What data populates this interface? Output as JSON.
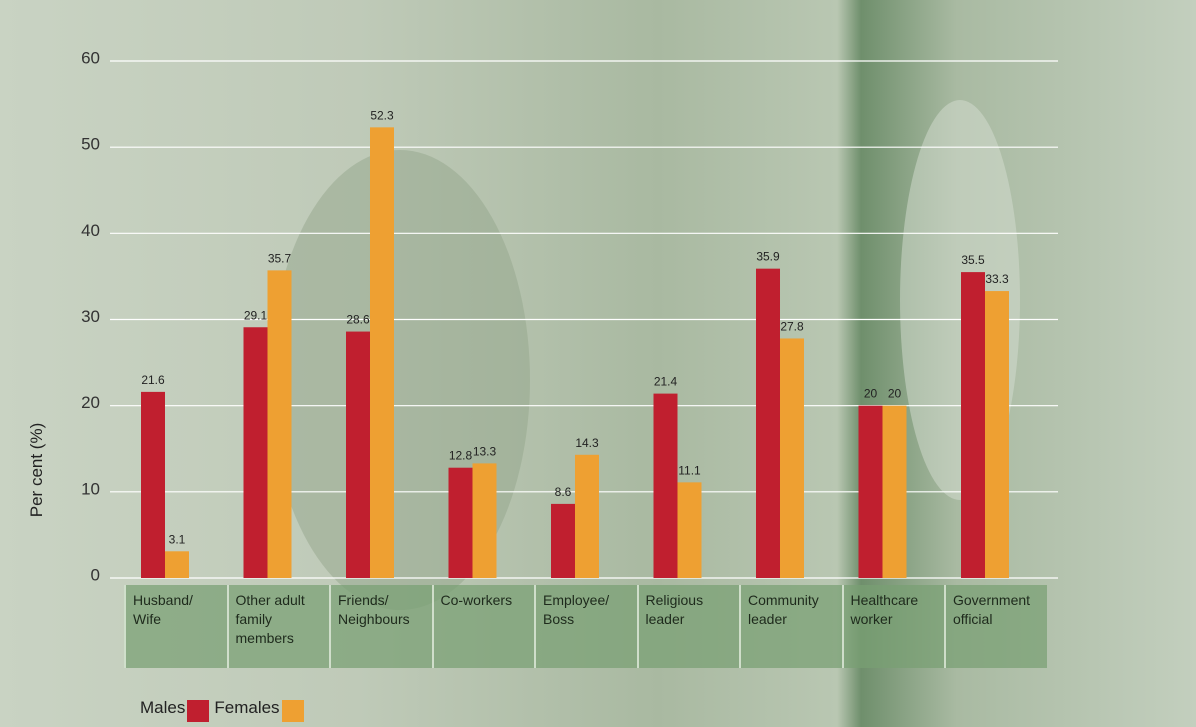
{
  "chart_data": {
    "type": "bar",
    "y_label": "Per cent (%)",
    "categories": [
      "Husband/ Wife",
      "Other adult family members",
      "Friends/ Neighbours",
      "Co-workers",
      "Employee/ Boss",
      "Religious leader",
      "Community leader",
      "Healthcare worker",
      "Government official"
    ],
    "series": [
      {
        "name": "Males",
        "color": "#c01f2f",
        "values": [
          21.6,
          29.1,
          28.6,
          12.8,
          8.6,
          21.4,
          35.9,
          20,
          35.5
        ]
      },
      {
        "name": "Females",
        "color": "#eea032",
        "values": [
          3.1,
          35.7,
          52.3,
          13.3,
          14.3,
          11.1,
          27.8,
          20,
          33.3
        ]
      }
    ],
    "ylim": [
      0,
      60
    ],
    "yticks": [
      0,
      10,
      20,
      30,
      40,
      50,
      60
    ],
    "grid": true,
    "legend": "bottom-left"
  }
}
